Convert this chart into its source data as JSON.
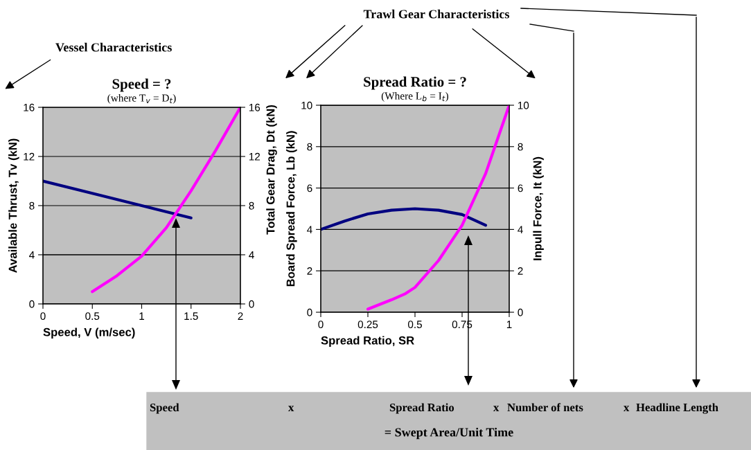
{
  "chart_data": [
    {
      "type": "line",
      "title": "Speed = ?",
      "subtitle": "(where T$_{v}$ = D$_{t}$)",
      "xlabel": "Speed, V (m/sec)",
      "ylabel": "Available Thrust, Tv (kN)",
      "xlim": [
        0,
        2
      ],
      "xticks": [
        0,
        0.5,
        1,
        1.5,
        2
      ],
      "ylim": [
        0,
        16
      ],
      "yticks": [
        0,
        4,
        8,
        12,
        16
      ],
      "y2lim": [
        0,
        16
      ],
      "y2ticks": [
        0,
        4,
        8,
        12,
        16
      ],
      "grid": "y",
      "legend": false,
      "series": [
        {
          "color": "#000080",
          "x": [
            0,
            0.5,
            1,
            1.5
          ],
          "values": [
            10,
            9,
            8,
            7
          ]
        },
        {
          "color": "#ff00ff",
          "x": [
            0.5,
            0.75,
            1,
            1.25,
            1.5,
            1.75,
            2
          ],
          "values": [
            1,
            2.3,
            3.9,
            6.2,
            9.2,
            12.5,
            16
          ]
        }
      ],
      "annotations": [
        "Vessel Characteristics"
      ]
    },
    {
      "type": "line",
      "title": "Spread Ratio = ?",
      "subtitle": "(Where L$_{b}$ = I$_{t}$)",
      "xlabel": "Spread Ratio, SR",
      "ylabel": "Board Spread Force, Lb (kN)",
      "y2label": "Inpull Force, It (kN)",
      "xlim": [
        0,
        1
      ],
      "xticks": [
        0,
        0.25,
        0.5,
        0.75,
        1
      ],
      "ylim": [
        0,
        10
      ],
      "yticks": [
        0,
        2,
        4,
        6,
        8,
        10
      ],
      "y2lim": [
        0,
        10
      ],
      "y2ticks": [
        0,
        2,
        4,
        6,
        8,
        10
      ],
      "grid": "y",
      "legend": false,
      "series": [
        {
          "color": "#000080",
          "x": [
            0,
            0.125,
            0.25,
            0.375,
            0.5,
            0.625,
            0.75,
            0.875
          ],
          "values": [
            4,
            4.4,
            4.75,
            4.93,
            5,
            4.93,
            4.72,
            4.2
          ]
        },
        {
          "color": "#ff00ff",
          "axis": "y2",
          "x": [
            0.25,
            0.375,
            0.45,
            0.5,
            0.625,
            0.75,
            0.875,
            1
          ],
          "values": [
            0.15,
            0.6,
            0.9,
            1.2,
            2.5,
            4.2,
            6.7,
            10
          ]
        }
      ],
      "annotations": [
        "Total Gear Drag, Dt (kN)",
        "Trawl Gear Characteristics",
        "Speed",
        "x",
        "Spread Ratio",
        "x",
        "Number of nets",
        "x",
        "Headline Length",
        "= Swept Area/Unit Time"
      ]
    }
  ]
}
